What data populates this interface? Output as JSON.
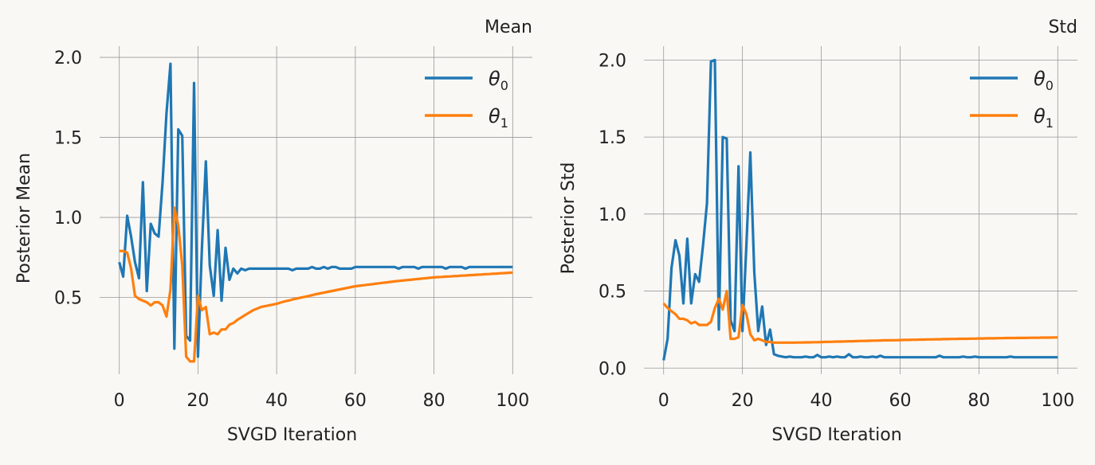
{
  "colors": {
    "theta0": "#1f77b4",
    "theta1": "#ff7f0e",
    "background": "#f9f8f5",
    "grid": "#999999"
  },
  "chart_data": [
    {
      "type": "line",
      "title": "Mean",
      "xlabel": "SVGD Iteration",
      "ylabel": "Posterior Mean",
      "xlim": [
        -5,
        105
      ],
      "ylim": [
        0.02,
        2.07
      ],
      "xticks": [
        0,
        20,
        40,
        60,
        80,
        100
      ],
      "xtick_labels": [
        "0",
        "20",
        "40",
        "60",
        "80",
        "100"
      ],
      "yticks": [
        0.5,
        1.0,
        1.5,
        2.0
      ],
      "ytick_labels": [
        "0.5",
        "1.0",
        "1.5",
        "2.0"
      ],
      "grid": true,
      "legend_position": "top-right",
      "series": [
        {
          "name": "θ",
          "subscript": "0",
          "color": "#1f77b4",
          "values": [
            0.72,
            0.63,
            1.01,
            0.88,
            0.72,
            0.62,
            1.22,
            0.54,
            0.96,
            0.9,
            0.88,
            1.22,
            1.65,
            1.96,
            0.18,
            1.55,
            1.51,
            0.26,
            0.23,
            1.84,
            0.13,
            0.8,
            1.35,
            0.7,
            0.51,
            0.92,
            0.48,
            0.81,
            0.61,
            0.68,
            0.65,
            0.68,
            0.67,
            0.68,
            0.68,
            0.68,
            0.68,
            0.68,
            0.68,
            0.68,
            0.68,
            0.68,
            0.68,
            0.68,
            0.67,
            0.68,
            0.68,
            0.68,
            0.68,
            0.69,
            0.68,
            0.68,
            0.69,
            0.68,
            0.69,
            0.69,
            0.68,
            0.68,
            0.68,
            0.68,
            0.69,
            0.69,
            0.69,
            0.69,
            0.69,
            0.69,
            0.69,
            0.69,
            0.69,
            0.69,
            0.69,
            0.68,
            0.69,
            0.69,
            0.69,
            0.69,
            0.68,
            0.69,
            0.69,
            0.69,
            0.69,
            0.69,
            0.69,
            0.68,
            0.69,
            0.69,
            0.69,
            0.69,
            0.68,
            0.69,
            0.69,
            0.69,
            0.69,
            0.69,
            0.69,
            0.69,
            0.69,
            0.69,
            0.69,
            0.69,
            0.69
          ]
        },
        {
          "name": "θ",
          "subscript": "1",
          "color": "#ff7f0e",
          "values": [
            0.79,
            0.79,
            0.78,
            0.68,
            0.51,
            0.49,
            0.48,
            0.47,
            0.45,
            0.47,
            0.47,
            0.45,
            0.38,
            0.55,
            1.06,
            0.95,
            0.7,
            0.13,
            0.1,
            0.1,
            0.51,
            0.42,
            0.44,
            0.27,
            0.28,
            0.27,
            0.3,
            0.3,
            0.33,
            0.34,
            0.36,
            0.375,
            0.39,
            0.405,
            0.42,
            0.43,
            0.44,
            0.445,
            0.45,
            0.455,
            0.46,
            0.468,
            0.475,
            0.48,
            0.487,
            0.492,
            0.498,
            0.503,
            0.508,
            0.514,
            0.52,
            0.525,
            0.53,
            0.535,
            0.54,
            0.545,
            0.55,
            0.555,
            0.56,
            0.565,
            0.57,
            0.573,
            0.576,
            0.579,
            0.582,
            0.585,
            0.588,
            0.591,
            0.594,
            0.597,
            0.6,
            0.603,
            0.605,
            0.608,
            0.61,
            0.613,
            0.615,
            0.618,
            0.62,
            0.623,
            0.625,
            0.627,
            0.628,
            0.63,
            0.631,
            0.633,
            0.634,
            0.636,
            0.637,
            0.639,
            0.64,
            0.642,
            0.643,
            0.645,
            0.646,
            0.648,
            0.649,
            0.651,
            0.652,
            0.654,
            0.655
          ]
        }
      ]
    },
    {
      "type": "line",
      "title": "Std",
      "xlabel": "SVGD Iteration",
      "ylabel": "Posterior Std",
      "xlim": [
        -5,
        105
      ],
      "ylim": [
        -0.04,
        2.09
      ],
      "xticks": [
        0,
        20,
        40,
        60,
        80,
        100
      ],
      "xtick_labels": [
        "0",
        "20",
        "40",
        "60",
        "80",
        "100"
      ],
      "yticks": [
        0.0,
        0.5,
        1.0,
        1.5,
        2.0
      ],
      "ytick_labels": [
        "0.0",
        "0.5",
        "1.0",
        "1.5",
        "2.0"
      ],
      "grid": true,
      "legend_position": "top-right",
      "series": [
        {
          "name": "θ",
          "subscript": "0",
          "color": "#1f77b4",
          "values": [
            0.05,
            0.19,
            0.65,
            0.83,
            0.73,
            0.42,
            0.84,
            0.42,
            0.61,
            0.56,
            0.8,
            1.07,
            1.99,
            2.0,
            0.25,
            1.5,
            1.49,
            0.31,
            0.24,
            1.31,
            0.24,
            0.8,
            1.4,
            0.62,
            0.24,
            0.4,
            0.15,
            0.25,
            0.09,
            0.08,
            0.075,
            0.07,
            0.075,
            0.07,
            0.07,
            0.07,
            0.075,
            0.07,
            0.07,
            0.085,
            0.07,
            0.07,
            0.075,
            0.07,
            0.075,
            0.07,
            0.07,
            0.09,
            0.07,
            0.07,
            0.075,
            0.07,
            0.07,
            0.075,
            0.07,
            0.08,
            0.07,
            0.07,
            0.07,
            0.07,
            0.07,
            0.07,
            0.07,
            0.07,
            0.07,
            0.07,
            0.07,
            0.07,
            0.07,
            0.07,
            0.08,
            0.07,
            0.07,
            0.07,
            0.07,
            0.07,
            0.075,
            0.07,
            0.07,
            0.075,
            0.07,
            0.07,
            0.07,
            0.07,
            0.07,
            0.07,
            0.07,
            0.07,
            0.075,
            0.07,
            0.07,
            0.07,
            0.07,
            0.07,
            0.07,
            0.07,
            0.07,
            0.07,
            0.07,
            0.07,
            0.07
          ]
        },
        {
          "name": "θ",
          "subscript": "1",
          "color": "#ff7f0e",
          "values": [
            0.42,
            0.39,
            0.37,
            0.35,
            0.32,
            0.32,
            0.31,
            0.29,
            0.3,
            0.28,
            0.28,
            0.28,
            0.3,
            0.39,
            0.45,
            0.38,
            0.5,
            0.19,
            0.19,
            0.2,
            0.41,
            0.35,
            0.22,
            0.18,
            0.19,
            0.18,
            0.17,
            0.17,
            0.165,
            0.165,
            0.165,
            0.165,
            0.165,
            0.165,
            0.166,
            0.166,
            0.167,
            0.167,
            0.168,
            0.168,
            0.169,
            0.17,
            0.17,
            0.171,
            0.172,
            0.172,
            0.173,
            0.174,
            0.174,
            0.175,
            0.176,
            0.176,
            0.177,
            0.178,
            0.178,
            0.179,
            0.18,
            0.18,
            0.181,
            0.181,
            0.182,
            0.183,
            0.183,
            0.184,
            0.184,
            0.185,
            0.185,
            0.186,
            0.186,
            0.187,
            0.187,
            0.188,
            0.188,
            0.189,
            0.189,
            0.19,
            0.19,
            0.19,
            0.191,
            0.191,
            0.192,
            0.192,
            0.193,
            0.193,
            0.193,
            0.194,
            0.194,
            0.195,
            0.195,
            0.195,
            0.196,
            0.196,
            0.196,
            0.197,
            0.197,
            0.197,
            0.198,
            0.198,
            0.198,
            0.199,
            0.199
          ]
        }
      ]
    }
  ]
}
